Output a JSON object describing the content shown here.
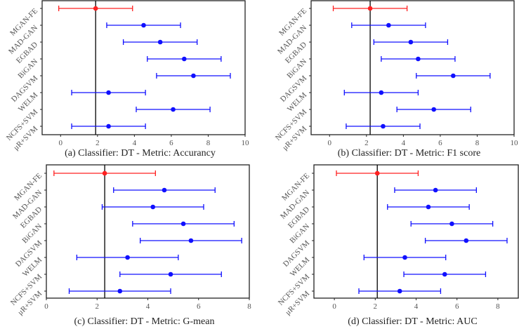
{
  "colors": {
    "highlight": "#ff2020",
    "other": "#1010ff",
    "reference_line": "#000000"
  },
  "categories": [
    "MGAN-FE",
    "MAD-GAN",
    "EGBAD",
    "BiGAN",
    "DAGSVM",
    "WELM",
    "NCFS+SVM",
    "μR+SVM"
  ],
  "chart_data": [
    {
      "type": "scatter",
      "title": "(a) Classifier: DT - Metric:  Accurancy",
      "xlim": [
        -1,
        10
      ],
      "xticks": [
        0,
        2,
        4,
        6,
        8,
        10
      ],
      "reference_value": 1.9,
      "ci_half_width": 2.0,
      "values": [
        1.9,
        4.5,
        5.4,
        6.7,
        7.2,
        2.6,
        6.1,
        2.6
      ]
    },
    {
      "type": "scatter",
      "title": "(b) Classifier: DT - Metric: F1 score",
      "xlim": [
        -1,
        10
      ],
      "xticks": [
        0,
        2,
        4,
        6,
        8,
        10
      ],
      "reference_value": 2.2,
      "ci_half_width": 2.0,
      "values": [
        2.2,
        3.2,
        4.4,
        4.8,
        6.7,
        2.8,
        5.65,
        2.9
      ]
    },
    {
      "type": "scatter",
      "title": "(c) Classifier: DT - Metric: G-mean",
      "xlim": [
        0,
        8
      ],
      "xticks": [
        0,
        2,
        4,
        6,
        8
      ],
      "reference_value": 2.3,
      "ci_half_width": 2.0,
      "values": [
        2.3,
        4.65,
        4.2,
        5.4,
        5.7,
        3.2,
        4.9,
        2.9
      ]
    },
    {
      "type": "scatter",
      "title": "(d)  Classifier: DT - Metric: AUC",
      "xlim": [
        -1,
        9
      ],
      "xticks": [
        0,
        2,
        4,
        6,
        8
      ],
      "reference_value": 2.1,
      "ci_half_width": 2.0,
      "values": [
        2.1,
        4.95,
        4.6,
        5.75,
        6.45,
        3.45,
        5.4,
        3.2
      ]
    }
  ]
}
